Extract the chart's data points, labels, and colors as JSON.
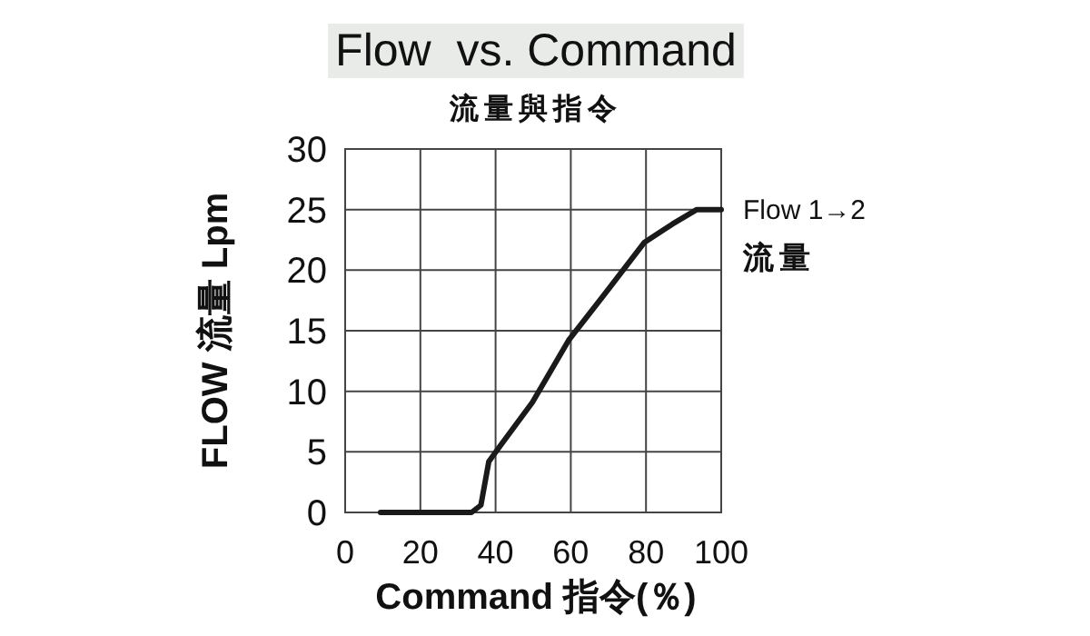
{
  "chart_data": {
    "type": "line",
    "title": "Flow  vs. Command",
    "subtitle": "流量與指令",
    "xlabel": "Command 指令(％)",
    "ylabel": "FLOW 流量 Lpm",
    "xlim": [
      0,
      100
    ],
    "ylim": [
      0,
      30
    ],
    "xticks": [
      0,
      20,
      40,
      60,
      80,
      100
    ],
    "yticks": [
      0,
      5,
      10,
      15,
      20,
      25,
      30
    ],
    "grid": true,
    "x": [
      9.4,
      33.6,
      36.1,
      38.2,
      41,
      49.8,
      59.4,
      69.2,
      79.6,
      87,
      93.5,
      100
    ],
    "series": [
      {
        "name": "Flow 1→2",
        "color": "#1a1a1a",
        "values": [
          0,
          0,
          0.6,
          4.2,
          5.4,
          9.1,
          14.2,
          18.1,
          22.3,
          23.8,
          25,
          25
        ]
      }
    ],
    "annotations": [
      "流量"
    ]
  }
}
